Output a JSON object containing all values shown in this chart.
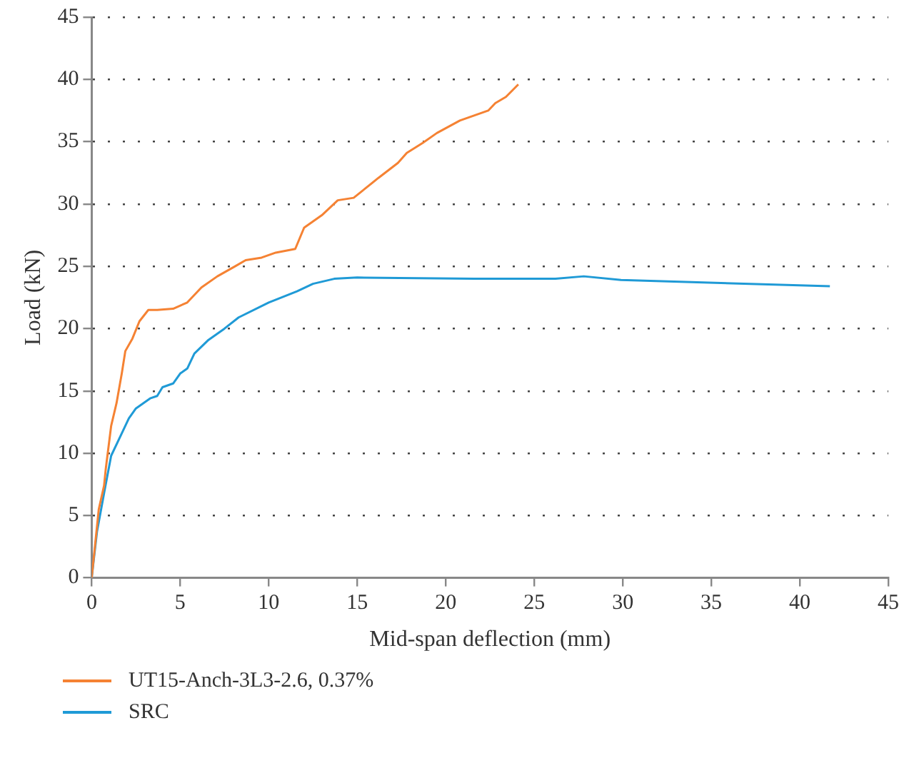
{
  "chart_data": {
    "type": "line",
    "xlabel": "Mid-span deflection (mm)",
    "ylabel": "Load (kN)",
    "xlim": [
      0,
      45
    ],
    "xticks": [
      0,
      5,
      10,
      15,
      20,
      25,
      30,
      35,
      40,
      45
    ],
    "ylim": [
      0,
      45
    ],
    "yticks": [
      0,
      5,
      10,
      15,
      20,
      25,
      30,
      35,
      40,
      45
    ],
    "grid": "y",
    "legend": "bottom left",
    "marker": "none",
    "line_style": "solid",
    "series": [
      {
        "name": "UT15-Anch-3L3-2.6, 0.37%",
        "color": "#f58233",
        "x": [
          0,
          0.4,
          0.7,
          0.8,
          1.1,
          1.4,
          1.7,
          1.9,
          2.3,
          2.7,
          3.2,
          3.7,
          4.6,
          5.4,
          6.2,
          7.1,
          8.1,
          8.7,
          9.6,
          10.4,
          11.5,
          12,
          13,
          13.9,
          14.8,
          16.2,
          17.3,
          17.8,
          18.7,
          19.5,
          20.8,
          22.4,
          22.8,
          23.4,
          24.1
        ],
        "values": [
          0,
          5.5,
          7.4,
          8.8,
          12.2,
          14,
          16.4,
          18.2,
          19.2,
          20.6,
          21.5,
          21.5,
          21.6,
          22.1,
          23.3,
          24.2,
          25,
          25.5,
          25.7,
          26.1,
          26.4,
          28.1,
          29.1,
          30.3,
          30.5,
          32.1,
          33.3,
          34.1,
          34.9,
          35.7,
          36.7,
          37.5,
          38.1,
          38.6,
          39.6
        ]
      },
      {
        "name": "SRC",
        "color": "#1f9ad6",
        "x": [
          0,
          0.3,
          0.7,
          1.1,
          1.7,
          2.1,
          2.5,
          3.3,
          3.7,
          4,
          4.6,
          5,
          5.4,
          5.8,
          6.6,
          7.5,
          8.3,
          10,
          11.6,
          12.5,
          13.7,
          15,
          21.6,
          26.2,
          27.8,
          29.9,
          41.7
        ],
        "values": [
          0,
          3.7,
          6.8,
          9.8,
          11.6,
          12.8,
          13.6,
          14.4,
          14.6,
          15.3,
          15.6,
          16.4,
          16.8,
          18,
          19.1,
          20,
          20.9,
          22.1,
          23,
          23.6,
          24,
          24.1,
          24,
          24,
          24.2,
          23.9,
          23.4
        ]
      }
    ]
  }
}
